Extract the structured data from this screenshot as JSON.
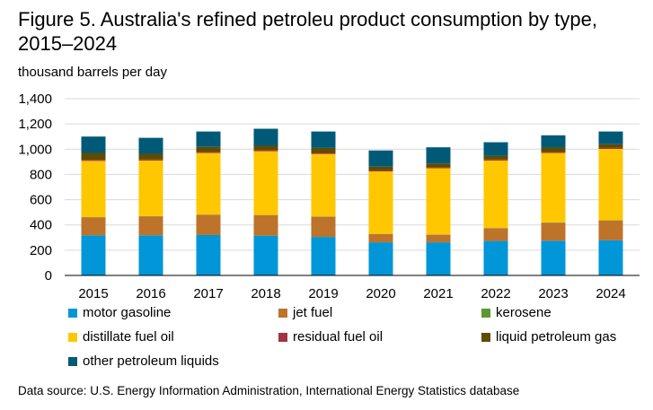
{
  "header": {
    "title": "Figure 5. Australia's refined petroleu product consumption by type, 2015–2024"
  },
  "footer": {
    "source": "Data source: U.S. Energy Information Administration, International Energy Statistics database"
  },
  "chart_data": {
    "type": "bar",
    "stacked": true,
    "title": "Figure 5. Australia's refined petroleu product consumption by type, 2015–2024",
    "ylabel": "thousand barrels per day",
    "xlabel": "",
    "ylim": [
      0,
      1400
    ],
    "yticks": [
      0,
      200,
      400,
      600,
      800,
      1000,
      1200,
      1400
    ],
    "ytick_labels": [
      "0",
      "200",
      "400",
      "600",
      "800",
      "1,000",
      "1,200",
      "1,400"
    ],
    "grid": true,
    "legend_position": "bottom",
    "categories": [
      "2015",
      "2016",
      "2017",
      "2018",
      "2019",
      "2020",
      "2021",
      "2022",
      "2023",
      "2024"
    ],
    "series": [
      {
        "name": "motor gasoline",
        "color": "#0096d7",
        "values": [
          318,
          318,
          320,
          315,
          305,
          262,
          262,
          273,
          275,
          278
        ]
      },
      {
        "name": "jet fuel",
        "color": "#bd732a",
        "values": [
          142,
          150,
          160,
          162,
          160,
          65,
          60,
          100,
          143,
          157
        ]
      },
      {
        "name": "kerosene",
        "color": "#5d9732",
        "values": [
          2,
          2,
          2,
          2,
          2,
          2,
          2,
          2,
          2,
          2
        ]
      },
      {
        "name": "distillate fuel oil",
        "color": "#ffc700",
        "values": [
          445,
          440,
          488,
          505,
          495,
          495,
          525,
          535,
          550,
          565
        ]
      },
      {
        "name": "residual fuel oil",
        "color": "#a33340",
        "values": [
          8,
          8,
          8,
          8,
          8,
          8,
          8,
          8,
          8,
          8
        ]
      },
      {
        "name": "liquid petroleum gas",
        "color": "#5f4b02",
        "values": [
          55,
          45,
          40,
          35,
          40,
          30,
          30,
          30,
          35,
          30
        ]
      },
      {
        "name": "other petroleum liquids",
        "color": "#005a77",
        "values": [
          130,
          127,
          122,
          135,
          130,
          128,
          128,
          107,
          97,
          100
        ]
      }
    ]
  }
}
